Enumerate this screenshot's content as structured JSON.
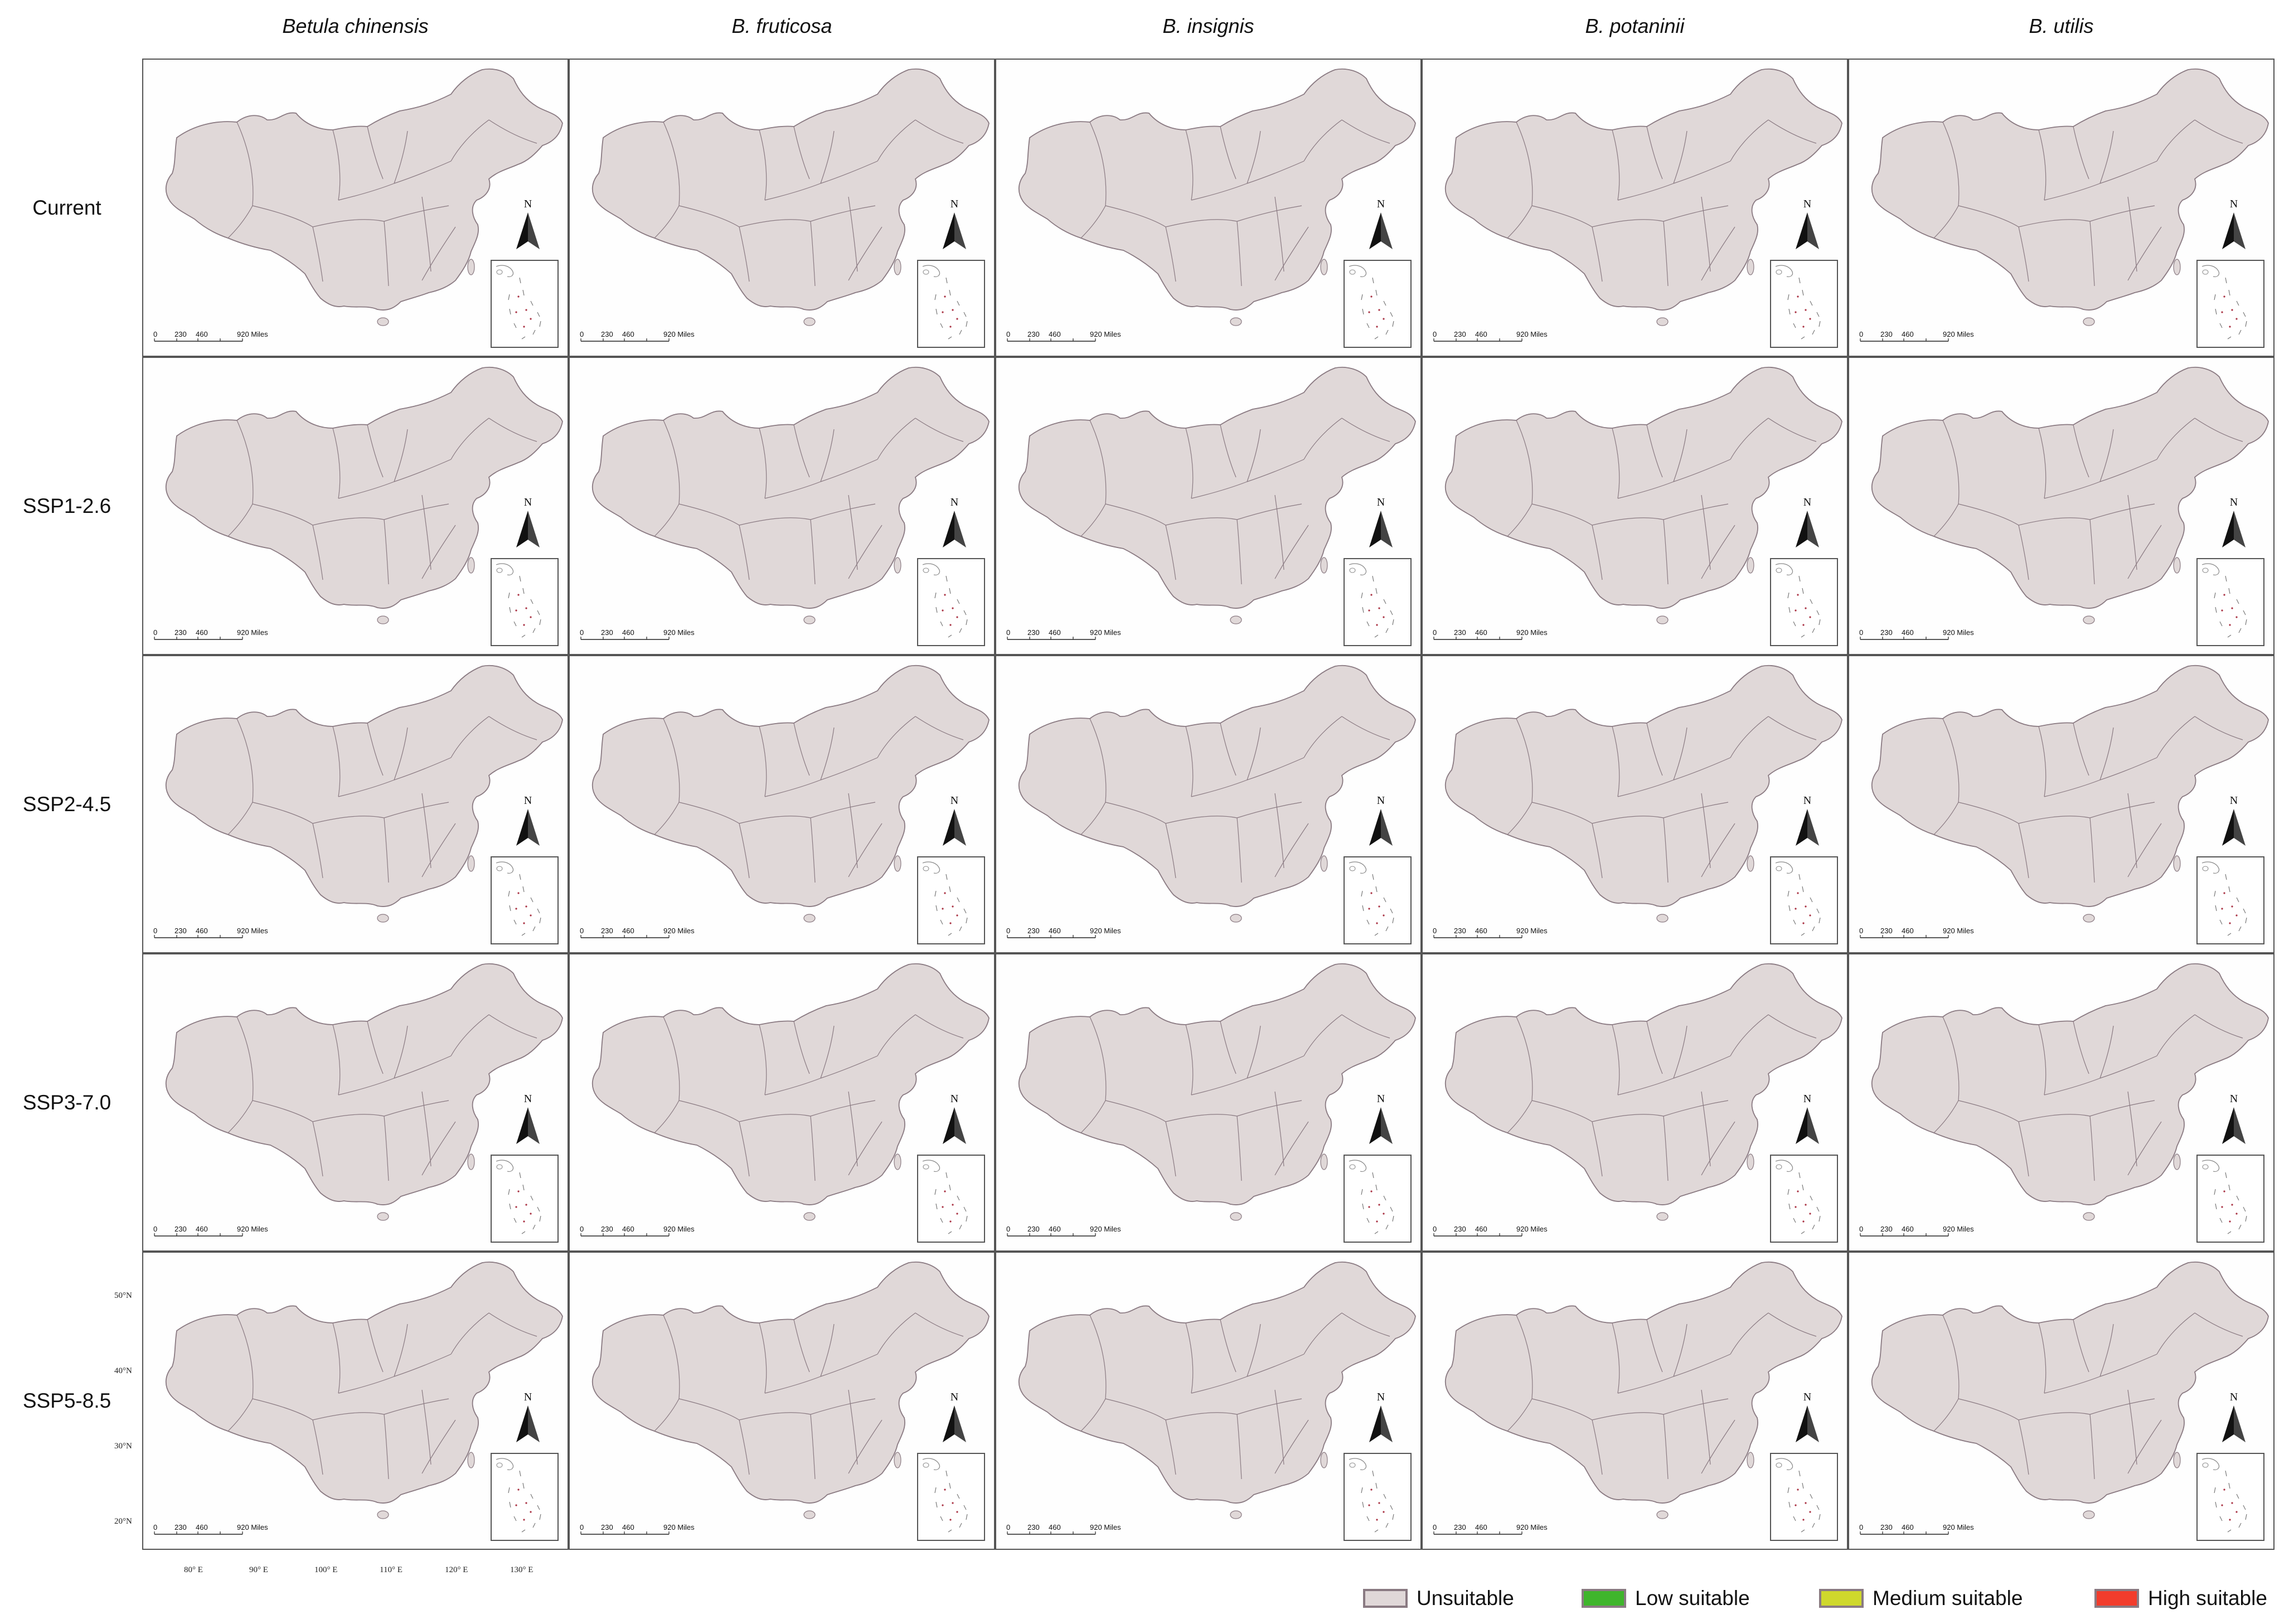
{
  "species": [
    "Betula chinensis",
    "B. fruticosa",
    "B. insignis",
    "B. potaninii",
    "B. utilis"
  ],
  "scenarios": [
    "Current",
    "SSP1-2.6",
    "SSP2-4.5",
    "SSP3-7.0",
    "SSP5-8.5"
  ],
  "scale": {
    "ticks": [
      "0",
      "230",
      "460",
      "920 Miles"
    ]
  },
  "north_letter": "N",
  "latitude_labels": [
    "50°N",
    "40°N",
    "30°N",
    "20°N"
  ],
  "longitude_labels": [
    "80° E",
    "90° E",
    "100° E",
    "110° E",
    "120° E",
    "130° E"
  ],
  "colors": {
    "unsuitable": "#e0d8d8",
    "low": "#3fb52c",
    "medium": "#cfd82c",
    "high": "#f23c2c",
    "border": "#8a7a82"
  },
  "legend": [
    {
      "label": "Unsuitable",
      "color": "#e0d8d8"
    },
    {
      "label": "Low suitable",
      "color": "#3fb52c"
    },
    {
      "label": "Medium suitable",
      "color": "#cfd82c"
    },
    {
      "label": "High suitable",
      "color": "#f23c2c"
    }
  ]
}
